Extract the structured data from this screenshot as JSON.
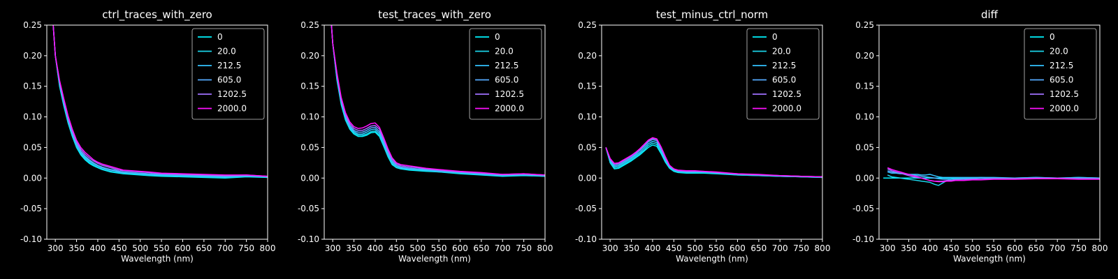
{
  "figure": {
    "background": "#000000",
    "foreground": "#ffffff"
  },
  "legend": {
    "labels": [
      "0",
      "20.0",
      "212.5",
      "605.0",
      "1202.5",
      "2000.0"
    ],
    "colors": [
      "#00f5ff",
      "#1ad4ea",
      "#33c3ff",
      "#55aaff",
      "#a070ff",
      "#ff10ff"
    ],
    "placement": "upper-right"
  },
  "chart_data": [
    {
      "type": "line",
      "title": "ctrl_traces_with_zero",
      "xlabel": "Wavelength (nm)",
      "xlim": [
        280,
        800
      ],
      "ylim": [
        -0.1,
        0.25
      ],
      "xticks": [
        300,
        350,
        400,
        450,
        500,
        550,
        600,
        650,
        700,
        750,
        800
      ],
      "yticks": [
        -0.1,
        -0.05,
        0.0,
        0.05,
        0.1,
        0.15,
        0.2,
        0.25
      ],
      "x": [
        290,
        300,
        310,
        320,
        330,
        340,
        350,
        360,
        370,
        380,
        390,
        400,
        410,
        420,
        430,
        440,
        450,
        460,
        480,
        500,
        520,
        550,
        600,
        650,
        700,
        750,
        800
      ],
      "series": [
        {
          "name": "0",
          "values": [
            0.3,
            0.2,
            0.15,
            0.118,
            0.09,
            0.068,
            0.05,
            0.038,
            0.03,
            0.024,
            0.02,
            0.017,
            0.014,
            0.012,
            0.01,
            0.009,
            0.008,
            0.007,
            0.006,
            0.005,
            0.004,
            0.003,
            0.002,
            0.001,
            0.0,
            0.002,
            0.001
          ]
        },
        {
          "name": "20.0",
          "values": [
            0.3,
            0.2,
            0.152,
            0.12,
            0.092,
            0.07,
            0.052,
            0.04,
            0.032,
            0.026,
            0.022,
            0.018,
            0.015,
            0.013,
            0.011,
            0.01,
            0.009,
            0.008,
            0.007,
            0.006,
            0.005,
            0.004,
            0.003,
            0.002,
            0.001,
            0.003,
            0.002
          ]
        },
        {
          "name": "212.5",
          "values": [
            0.3,
            0.2,
            0.154,
            0.122,
            0.094,
            0.072,
            0.054,
            0.042,
            0.034,
            0.028,
            0.024,
            0.02,
            0.017,
            0.015,
            0.013,
            0.012,
            0.01,
            0.009,
            0.008,
            0.007,
            0.006,
            0.005,
            0.004,
            0.003,
            0.002,
            0.003,
            0.002
          ]
        },
        {
          "name": "605.0",
          "values": [
            0.3,
            0.2,
            0.156,
            0.124,
            0.096,
            0.074,
            0.056,
            0.044,
            0.036,
            0.03,
            0.025,
            0.021,
            0.018,
            0.016,
            0.014,
            0.013,
            0.011,
            0.01,
            0.009,
            0.008,
            0.007,
            0.006,
            0.005,
            0.004,
            0.003,
            0.004,
            0.002
          ]
        },
        {
          "name": "1202.5",
          "values": [
            0.3,
            0.2,
            0.158,
            0.127,
            0.099,
            0.077,
            0.059,
            0.047,
            0.039,
            0.033,
            0.028,
            0.024,
            0.021,
            0.019,
            0.017,
            0.015,
            0.013,
            0.012,
            0.011,
            0.01,
            0.009,
            0.007,
            0.006,
            0.005,
            0.004,
            0.005,
            0.003
          ]
        },
        {
          "name": "2000.0",
          "values": [
            0.3,
            0.2,
            0.16,
            0.13,
            0.102,
            0.08,
            0.062,
            0.05,
            0.042,
            0.036,
            0.03,
            0.026,
            0.023,
            0.021,
            0.019,
            0.017,
            0.015,
            0.013,
            0.012,
            0.011,
            0.01,
            0.008,
            0.007,
            0.006,
            0.005,
            0.005,
            0.003
          ]
        }
      ]
    },
    {
      "type": "line",
      "title": "test_traces_with_zero",
      "xlabel": "Wavelength (nm)",
      "xlim": [
        280,
        800
      ],
      "ylim": [
        -0.1,
        0.25
      ],
      "xticks": [
        300,
        350,
        400,
        450,
        500,
        550,
        600,
        650,
        700,
        750,
        800
      ],
      "yticks": [
        -0.1,
        -0.05,
        0.0,
        0.05,
        0.1,
        0.15,
        0.2,
        0.25
      ],
      "x": [
        290,
        300,
        310,
        320,
        330,
        340,
        350,
        360,
        370,
        380,
        390,
        400,
        410,
        420,
        430,
        440,
        450,
        460,
        480,
        500,
        520,
        550,
        600,
        650,
        700,
        750,
        800
      ],
      "series": [
        {
          "name": "0",
          "values": [
            0.32,
            0.22,
            0.16,
            0.12,
            0.095,
            0.08,
            0.072,
            0.068,
            0.068,
            0.07,
            0.074,
            0.075,
            0.068,
            0.052,
            0.035,
            0.022,
            0.017,
            0.015,
            0.013,
            0.012,
            0.011,
            0.01,
            0.007,
            0.005,
            0.003,
            0.004,
            0.003
          ]
        },
        {
          "name": "20.0",
          "values": [
            0.32,
            0.22,
            0.162,
            0.122,
            0.097,
            0.082,
            0.074,
            0.07,
            0.07,
            0.072,
            0.076,
            0.077,
            0.07,
            0.054,
            0.037,
            0.024,
            0.018,
            0.016,
            0.014,
            0.013,
            0.012,
            0.01,
            0.008,
            0.006,
            0.004,
            0.005,
            0.003
          ]
        },
        {
          "name": "212.5",
          "values": [
            0.32,
            0.22,
            0.164,
            0.124,
            0.099,
            0.084,
            0.076,
            0.072,
            0.072,
            0.075,
            0.079,
            0.08,
            0.073,
            0.057,
            0.039,
            0.026,
            0.02,
            0.017,
            0.015,
            0.014,
            0.013,
            0.011,
            0.009,
            0.006,
            0.004,
            0.005,
            0.004
          ]
        },
        {
          "name": "605.0",
          "values": [
            0.32,
            0.22,
            0.166,
            0.126,
            0.101,
            0.086,
            0.078,
            0.075,
            0.075,
            0.078,
            0.082,
            0.083,
            0.076,
            0.06,
            0.042,
            0.028,
            0.021,
            0.018,
            0.016,
            0.015,
            0.014,
            0.012,
            0.009,
            0.007,
            0.005,
            0.006,
            0.004
          ]
        },
        {
          "name": "1202.5",
          "values": [
            0.32,
            0.22,
            0.169,
            0.129,
            0.104,
            0.089,
            0.081,
            0.078,
            0.078,
            0.081,
            0.085,
            0.086,
            0.08,
            0.063,
            0.045,
            0.031,
            0.023,
            0.02,
            0.018,
            0.017,
            0.015,
            0.013,
            0.01,
            0.008,
            0.006,
            0.007,
            0.005
          ]
        },
        {
          "name": "2000.0",
          "values": [
            0.32,
            0.22,
            0.172,
            0.132,
            0.107,
            0.092,
            0.084,
            0.081,
            0.082,
            0.085,
            0.089,
            0.09,
            0.083,
            0.066,
            0.048,
            0.033,
            0.025,
            0.022,
            0.02,
            0.018,
            0.016,
            0.014,
            0.011,
            0.009,
            0.006,
            0.007,
            0.005
          ]
        }
      ]
    },
    {
      "type": "line",
      "title": "test_minus_ctrl_norm",
      "xlabel": "Wavelength (nm)",
      "xlim": [
        280,
        800
      ],
      "ylim": [
        -0.1,
        0.25
      ],
      "xticks": [
        300,
        350,
        400,
        450,
        500,
        550,
        600,
        650,
        700,
        750,
        800
      ],
      "yticks": [
        -0.1,
        -0.05,
        0.0,
        0.05,
        0.1,
        0.15,
        0.2,
        0.25
      ],
      "x": [
        290,
        300,
        310,
        320,
        330,
        340,
        350,
        360,
        370,
        380,
        390,
        400,
        410,
        420,
        430,
        440,
        450,
        460,
        480,
        500,
        520,
        550,
        600,
        650,
        700,
        750,
        800
      ],
      "series": [
        {
          "name": "0",
          "values": [
            0.05,
            0.025,
            0.015,
            0.016,
            0.02,
            0.024,
            0.028,
            0.033,
            0.038,
            0.044,
            0.05,
            0.054,
            0.052,
            0.04,
            0.026,
            0.016,
            0.011,
            0.009,
            0.008,
            0.008,
            0.008,
            0.007,
            0.005,
            0.004,
            0.003,
            0.002,
            0.001
          ]
        },
        {
          "name": "20.0",
          "values": [
            0.05,
            0.026,
            0.017,
            0.018,
            0.022,
            0.026,
            0.03,
            0.035,
            0.04,
            0.046,
            0.053,
            0.057,
            0.055,
            0.043,
            0.028,
            0.017,
            0.012,
            0.01,
            0.009,
            0.009,
            0.009,
            0.008,
            0.005,
            0.004,
            0.003,
            0.002,
            0.001
          ]
        },
        {
          "name": "212.5",
          "values": [
            0.05,
            0.028,
            0.019,
            0.02,
            0.024,
            0.028,
            0.032,
            0.037,
            0.042,
            0.049,
            0.056,
            0.06,
            0.058,
            0.045,
            0.03,
            0.018,
            0.013,
            0.011,
            0.01,
            0.01,
            0.01,
            0.008,
            0.006,
            0.005,
            0.003,
            0.002,
            0.002
          ]
        },
        {
          "name": "605.0",
          "values": [
            0.05,
            0.03,
            0.021,
            0.022,
            0.026,
            0.03,
            0.034,
            0.039,
            0.045,
            0.052,
            0.059,
            0.063,
            0.061,
            0.048,
            0.032,
            0.019,
            0.014,
            0.012,
            0.011,
            0.011,
            0.01,
            0.009,
            0.006,
            0.005,
            0.004,
            0.003,
            0.002
          ]
        },
        {
          "name": "1202.5",
          "values": [
            0.05,
            0.031,
            0.023,
            0.024,
            0.028,
            0.032,
            0.036,
            0.041,
            0.047,
            0.054,
            0.061,
            0.065,
            0.063,
            0.05,
            0.034,
            0.02,
            0.015,
            0.012,
            0.011,
            0.011,
            0.011,
            0.009,
            0.007,
            0.005,
            0.004,
            0.003,
            0.002
          ]
        },
        {
          "name": "2000.0",
          "values": [
            0.05,
            0.032,
            0.024,
            0.025,
            0.029,
            0.033,
            0.037,
            0.042,
            0.048,
            0.055,
            0.062,
            0.066,
            0.064,
            0.051,
            0.035,
            0.021,
            0.015,
            0.013,
            0.012,
            0.012,
            0.011,
            0.01,
            0.007,
            0.006,
            0.004,
            0.003,
            0.002
          ]
        }
      ]
    },
    {
      "type": "line",
      "title": "diff",
      "xlabel": "Wavelength (nm)",
      "xlim": [
        280,
        800
      ],
      "ylim": [
        -0.1,
        0.25
      ],
      "xticks": [
        300,
        350,
        400,
        450,
        500,
        550,
        600,
        650,
        700,
        750,
        800
      ],
      "yticks": [
        -0.1,
        -0.05,
        0.0,
        0.05,
        0.1,
        0.15,
        0.2,
        0.25
      ],
      "x": [
        290,
        300,
        310,
        320,
        330,
        340,
        350,
        360,
        370,
        380,
        390,
        400,
        410,
        420,
        430,
        440,
        450,
        460,
        480,
        500,
        520,
        550,
        600,
        650,
        700,
        750,
        800
      ],
      "series": [
        {
          "name": "0",
          "values": [
            0.0,
            0.0,
            0.0,
            0.0,
            0.0,
            0.0,
            0.0,
            0.0,
            0.0,
            0.0,
            0.0,
            0.0,
            0.0,
            0.0,
            0.0,
            0.0,
            0.0,
            0.0,
            0.0,
            0.0,
            0.0,
            0.0,
            0.0,
            0.0,
            0.0,
            0.0,
            0.0
          ]
        },
        {
          "name": "20.0",
          "values": [
            null,
            0.005,
            0.002,
            0.001,
            0.0,
            -0.001,
            -0.002,
            -0.003,
            -0.004,
            -0.005,
            -0.006,
            -0.007,
            -0.01,
            -0.012,
            -0.008,
            -0.004,
            -0.002,
            -0.001,
            0.0,
            0.0,
            0.001,
            0.0,
            0.0,
            0.001,
            0.0,
            0.001,
            0.0
          ]
        },
        {
          "name": "212.5",
          "values": [
            null,
            0.01,
            0.008,
            0.008,
            0.007,
            0.007,
            0.006,
            0.006,
            0.006,
            0.005,
            0.005,
            0.006,
            0.004,
            0.002,
            0.001,
            0.001,
            0.001,
            0.001,
            0.001,
            0.001,
            0.001,
            0.001,
            0.0,
            0.001,
            0.0,
            0.001,
            0.0
          ]
        },
        {
          "name": "605.0",
          "values": [
            null,
            0.012,
            0.01,
            0.009,
            0.008,
            0.007,
            0.006,
            0.005,
            0.004,
            0.003,
            0.002,
            0.001,
            0.0,
            -0.001,
            -0.002,
            -0.002,
            -0.002,
            -0.002,
            -0.001,
            -0.001,
            0.0,
            0.0,
            0.0,
            0.0,
            0.0,
            0.0,
            0.0
          ]
        },
        {
          "name": "1202.5",
          "values": [
            null,
            0.015,
            0.012,
            0.01,
            0.008,
            0.006,
            0.004,
            0.002,
            0.001,
            0.0,
            -0.002,
            -0.004,
            -0.005,
            -0.005,
            -0.005,
            -0.004,
            -0.004,
            -0.003,
            -0.003,
            -0.002,
            -0.002,
            -0.001,
            -0.001,
            0.0,
            0.0,
            -0.001,
            -0.001
          ]
        },
        {
          "name": "2000.0",
          "values": [
            null,
            0.017,
            0.014,
            0.012,
            0.01,
            0.008,
            0.006,
            0.004,
            0.002,
            0.0,
            -0.002,
            -0.004,
            -0.005,
            -0.006,
            -0.006,
            -0.005,
            -0.005,
            -0.004,
            -0.004,
            -0.003,
            -0.003,
            -0.002,
            -0.002,
            -0.001,
            -0.001,
            -0.002,
            -0.002
          ]
        }
      ]
    }
  ]
}
